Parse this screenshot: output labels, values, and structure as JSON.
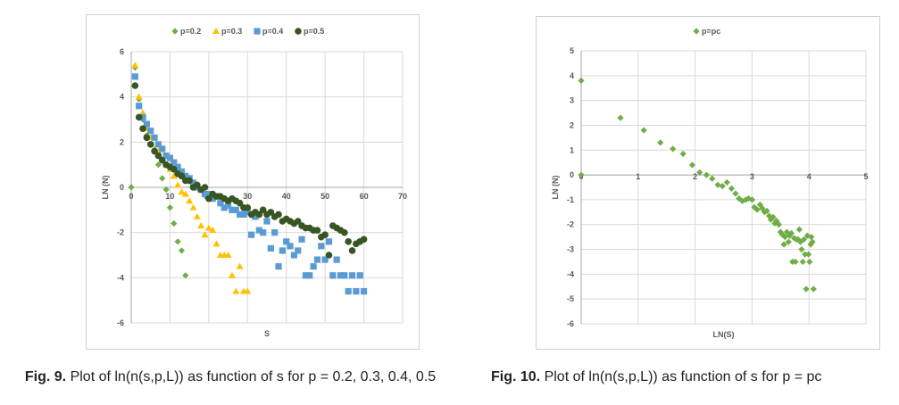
{
  "colors": {
    "p02": "#70ad47",
    "p03": "#ffc000",
    "p04": "#5b9bd5",
    "p05": "#375623",
    "pc": "#70ad47",
    "grid": "#d9d9d9",
    "axis": "#a6a6a6"
  },
  "captions": {
    "left_label": "Fig. 9.",
    "left_text": "Plot of ln(n(s,p,L)) as function of s for p = 0.2, 0.3, 0.4, 0.5",
    "right_label": "Fig. 10.",
    "right_text": "Plot of ln(n(s,p,L)) as function of s for p = pc"
  },
  "chart_data": [
    {
      "type": "scatter",
      "title": "",
      "xlabel": "S",
      "ylabel": "LN (N)",
      "xlim": [
        0,
        70
      ],
      "ylim": [
        -6,
        6
      ],
      "xticks": [
        0,
        10,
        20,
        30,
        40,
        50,
        60,
        70
      ],
      "yticks": [
        -6,
        -4,
        -2,
        0,
        2,
        4,
        6
      ],
      "grid": true,
      "legend": "top",
      "series": [
        {
          "name": "p=0.2",
          "marker": "diamond",
          "color": "#70ad47",
          "points": [
            [
              0,
              0
            ],
            [
              1,
              5.3
            ],
            [
              2,
              3.9
            ],
            [
              3,
              3.0
            ],
            [
              4,
              2.3
            ],
            [
              5,
              1.9
            ],
            [
              6,
              1.6
            ],
            [
              7,
              1.0
            ],
            [
              8,
              0.4
            ],
            [
              9,
              -0.1
            ],
            [
              10,
              -0.9
            ],
            [
              11,
              -1.6
            ],
            [
              12,
              -2.4
            ],
            [
              13,
              -2.8
            ],
            [
              14,
              -3.9
            ]
          ]
        },
        {
          "name": "p=0.3",
          "marker": "triangle",
          "color": "#ffc000",
          "points": [
            [
              1,
              5.4
            ],
            [
              2,
              4.0
            ],
            [
              3,
              3.3
            ],
            [
              4,
              2.6
            ],
            [
              5,
              2.2
            ],
            [
              6,
              1.7
            ],
            [
              7,
              1.6
            ],
            [
              8,
              1.2
            ],
            [
              9,
              1.0
            ],
            [
              10,
              0.8
            ],
            [
              11,
              0.5
            ],
            [
              12,
              0.1
            ],
            [
              13,
              -0.2
            ],
            [
              14,
              -0.3
            ],
            [
              15,
              -0.6
            ],
            [
              16,
              -0.9
            ],
            [
              17,
              -1.3
            ],
            [
              18,
              -1.7
            ],
            [
              19,
              -2.1
            ],
            [
              20,
              -1.8
            ],
            [
              21,
              -1.9
            ],
            [
              22,
              -2.5
            ],
            [
              23,
              -3.0
            ],
            [
              24,
              -3.0
            ],
            [
              25,
              -3.0
            ],
            [
              26,
              -3.9
            ],
            [
              27,
              -4.6
            ],
            [
              28,
              -3.5
            ],
            [
              29,
              -4.6
            ],
            [
              30,
              -4.6
            ]
          ]
        },
        {
          "name": "p=0.4",
          "marker": "square",
          "color": "#5b9bd5",
          "points": [
            [
              1,
              4.9
            ],
            [
              2,
              3.6
            ],
            [
              3,
              3.1
            ],
            [
              4,
              2.8
            ],
            [
              5,
              2.5
            ],
            [
              6,
              2.2
            ],
            [
              7,
              1.9
            ],
            [
              8,
              1.7
            ],
            [
              9,
              1.4
            ],
            [
              10,
              1.3
            ],
            [
              11,
              1.1
            ],
            [
              12,
              0.9
            ],
            [
              13,
              0.7
            ],
            [
              14,
              0.5
            ],
            [
              15,
              0.4
            ],
            [
              16,
              0.2
            ],
            [
              17,
              0.0
            ],
            [
              18,
              -0.1
            ],
            [
              19,
              -0.3
            ],
            [
              20,
              -0.3
            ],
            [
              21,
              -0.5
            ],
            [
              22,
              -0.4
            ],
            [
              23,
              -0.7
            ],
            [
              24,
              -0.9
            ],
            [
              25,
              -0.8
            ],
            [
              26,
              -1.0
            ],
            [
              27,
              -1.0
            ],
            [
              28,
              -1.2
            ],
            [
              29,
              -1.2
            ],
            [
              30,
              -1.1
            ],
            [
              31,
              -2.1
            ],
            [
              32,
              -1.3
            ],
            [
              33,
              -1.9
            ],
            [
              34,
              -2.0
            ],
            [
              35,
              -1.5
            ],
            [
              36,
              -2.7
            ],
            [
              37,
              -2.0
            ],
            [
              38,
              -3.5
            ],
            [
              39,
              -2.8
            ],
            [
              40,
              -2.4
            ],
            [
              41,
              -2.6
            ],
            [
              42,
              -3.0
            ],
            [
              43,
              -2.8
            ],
            [
              44,
              -2.3
            ],
            [
              45,
              -3.9
            ],
            [
              46,
              -3.9
            ],
            [
              47,
              -3.5
            ],
            [
              48,
              -3.2
            ],
            [
              49,
              -2.6
            ],
            [
              50,
              -3.2
            ],
            [
              51,
              -2.4
            ],
            [
              52,
              -3.9
            ],
            [
              53,
              -3.2
            ],
            [
              54,
              -3.9
            ],
            [
              55,
              -3.9
            ],
            [
              56,
              -4.6
            ],
            [
              57,
              -3.9
            ],
            [
              58,
              -4.6
            ],
            [
              59,
              -3.9
            ],
            [
              60,
              -4.6
            ]
          ]
        },
        {
          "name": "p=0.5",
          "marker": "circle",
          "color": "#375623",
          "points": [
            [
              1,
              4.5
            ],
            [
              2,
              3.1
            ],
            [
              3,
              2.6
            ],
            [
              4,
              2.2
            ],
            [
              5,
              1.9
            ],
            [
              6,
              1.6
            ],
            [
              7,
              1.4
            ],
            [
              8,
              1.2
            ],
            [
              9,
              1.0
            ],
            [
              10,
              0.9
            ],
            [
              11,
              0.8
            ],
            [
              12,
              0.6
            ],
            [
              13,
              0.5
            ],
            [
              14,
              0.3
            ],
            [
              15,
              0.3
            ],
            [
              16,
              0.0
            ],
            [
              17,
              0.1
            ],
            [
              18,
              -0.1
            ],
            [
              19,
              0.0
            ],
            [
              20,
              -0.5
            ],
            [
              21,
              -0.3
            ],
            [
              22,
              -0.4
            ],
            [
              23,
              -0.4
            ],
            [
              24,
              -0.5
            ],
            [
              25,
              -0.6
            ],
            [
              26,
              -0.5
            ],
            [
              27,
              -0.6
            ],
            [
              28,
              -0.7
            ],
            [
              29,
              -0.9
            ],
            [
              30,
              -0.9
            ],
            [
              31,
              -1.2
            ],
            [
              32,
              -1.1
            ],
            [
              33,
              -1.2
            ],
            [
              34,
              -1.0
            ],
            [
              35,
              -1.2
            ],
            [
              36,
              -1.1
            ],
            [
              37,
              -1.3
            ],
            [
              38,
              -1.2
            ],
            [
              39,
              -1.5
            ],
            [
              40,
              -1.4
            ],
            [
              41,
              -1.5
            ],
            [
              42,
              -1.6
            ],
            [
              43,
              -1.5
            ],
            [
              44,
              -1.7
            ],
            [
              45,
              -1.8
            ],
            [
              46,
              -1.8
            ],
            [
              47,
              -1.9
            ],
            [
              48,
              -1.9
            ],
            [
              49,
              -2.2
            ],
            [
              50,
              -2.1
            ],
            [
              51,
              -3.0
            ],
            [
              52,
              -1.7
            ],
            [
              53,
              -1.8
            ],
            [
              54,
              -1.9
            ],
            [
              55,
              -2.0
            ],
            [
              56,
              -2.4
            ],
            [
              57,
              -2.8
            ],
            [
              58,
              -2.5
            ],
            [
              59,
              -2.4
            ],
            [
              60,
              -2.3
            ]
          ]
        }
      ]
    },
    {
      "type": "scatter",
      "title": "",
      "xlabel": "LN(S)",
      "ylabel": "LN (N)",
      "xlim": [
        0,
        5
      ],
      "ylim": [
        -6,
        5
      ],
      "xticks": [
        0,
        1,
        2,
        3,
        4,
        5
      ],
      "yticks": [
        -6,
        -5,
        -4,
        -3,
        -2,
        -1,
        0,
        1,
        2,
        3,
        4,
        5
      ],
      "grid": true,
      "legend": "top",
      "series": [
        {
          "name": "p=pc",
          "marker": "diamond",
          "color": "#70ad47",
          "points": [
            [
              0,
              3.8
            ],
            [
              0,
              0
            ],
            [
              0.69,
              2.3
            ],
            [
              1.1,
              1.8
            ],
            [
              1.39,
              1.3
            ],
            [
              1.61,
              1.05
            ],
            [
              1.79,
              0.85
            ],
            [
              1.95,
              0.4
            ],
            [
              2.08,
              0.1
            ],
            [
              2.2,
              0.0
            ],
            [
              2.3,
              -0.15
            ],
            [
              2.4,
              -0.4
            ],
            [
              2.48,
              -0.45
            ],
            [
              2.56,
              -0.3
            ],
            [
              2.64,
              -0.55
            ],
            [
              2.71,
              -0.75
            ],
            [
              2.77,
              -0.95
            ],
            [
              2.83,
              -1.05
            ],
            [
              2.89,
              -1.0
            ],
            [
              2.94,
              -0.95
            ],
            [
              3.0,
              -1.0
            ],
            [
              3.04,
              -1.3
            ],
            [
              3.09,
              -1.4
            ],
            [
              3.14,
              -1.2
            ],
            [
              3.18,
              -1.35
            ],
            [
              3.22,
              -1.5
            ],
            [
              3.26,
              -1.45
            ],
            [
              3.3,
              -1.65
            ],
            [
              3.33,
              -1.8
            ],
            [
              3.37,
              -1.7
            ],
            [
              3.4,
              -1.95
            ],
            [
              3.43,
              -1.85
            ],
            [
              3.47,
              -2.0
            ],
            [
              3.5,
              -2.3
            ],
            [
              3.53,
              -2.4
            ],
            [
              3.56,
              -2.8
            ],
            [
              3.58,
              -2.5
            ],
            [
              3.61,
              -2.3
            ],
            [
              3.64,
              -2.7
            ],
            [
              3.66,
              -2.45
            ],
            [
              3.69,
              -2.35
            ],
            [
              3.71,
              -3.5
            ],
            [
              3.74,
              -2.55
            ],
            [
              3.76,
              -3.5
            ],
            [
              3.78,
              -2.6
            ],
            [
              3.81,
              -2.6
            ],
            [
              3.83,
              -2.2
            ],
            [
              3.85,
              -2.7
            ],
            [
              3.87,
              -3.0
            ],
            [
              3.89,
              -3.5
            ],
            [
              3.91,
              -2.6
            ],
            [
              3.93,
              -3.2
            ],
            [
              3.95,
              -4.6
            ],
            [
              3.97,
              -2.45
            ],
            [
              3.99,
              -3.2
            ],
            [
              4.01,
              -3.5
            ],
            [
              4.03,
              -2.8
            ],
            [
              4.04,
              -2.5
            ],
            [
              4.06,
              -2.7
            ],
            [
              4.08,
              -4.6
            ]
          ]
        }
      ]
    }
  ]
}
